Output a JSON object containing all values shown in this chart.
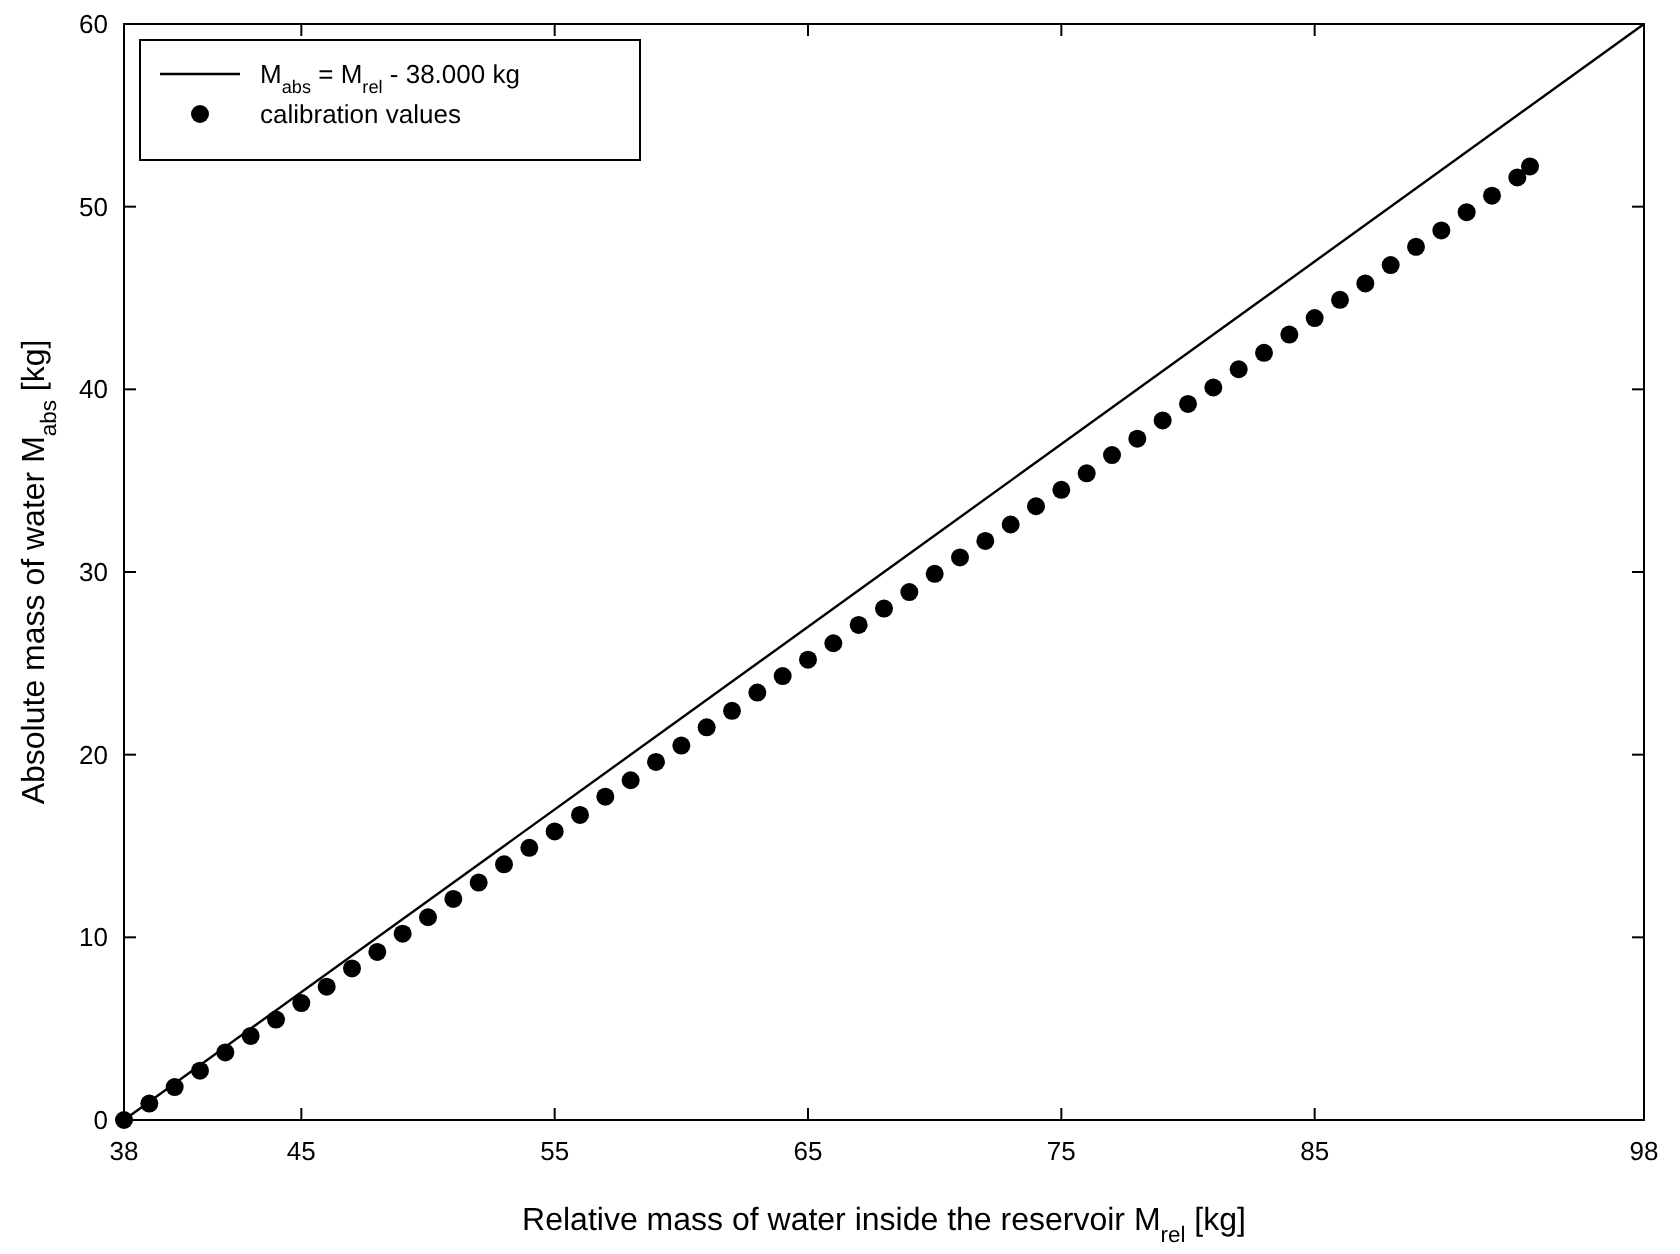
{
  "chart_data": {
    "type": "scatter",
    "xlabel": "Relative mass of water inside the reservoir M$_{rel}$ [kg]",
    "ylabel": "Absolute mass of water M$_{abs}$ [kg]",
    "xlim": [
      38,
      98
    ],
    "xticks": [
      38,
      45,
      55,
      65,
      75,
      85,
      98
    ],
    "ylim": [
      0,
      60
    ],
    "yticks": [
      0,
      10,
      20,
      30,
      40,
      50,
      60
    ],
    "grid": false,
    "legend": "top left",
    "series": [
      {
        "type": "line",
        "name": "M$_{abs}$ = M$_{rel}$ - 38.000 kg",
        "color": "#000000",
        "marker": "none",
        "line_style": "solid",
        "x": [
          38,
          98
        ],
        "values": [
          0,
          60
        ]
      },
      {
        "name": "calibration values",
        "color": "#000000",
        "marker": "circle",
        "x": [
          38,
          39,
          40,
          41,
          42,
          43,
          44,
          45,
          46,
          47,
          48,
          49,
          50,
          51,
          52,
          53,
          54,
          55,
          56,
          57,
          58,
          59,
          60,
          61,
          62,
          63,
          64,
          65,
          66,
          67,
          68,
          69,
          70,
          71,
          72,
          73,
          74,
          75,
          76,
          77,
          78,
          79,
          80,
          81,
          82,
          83,
          84,
          85,
          86,
          87,
          88,
          89,
          90,
          91,
          92,
          93,
          93.5
        ],
        "values": [
          0,
          0.9,
          1.8,
          2.7,
          3.7,
          4.6,
          5.5,
          6.4,
          7.3,
          8.3,
          9.2,
          10.2,
          11.1,
          12.1,
          13.0,
          14.0,
          14.9,
          15.8,
          16.7,
          17.7,
          18.6,
          19.6,
          20.5,
          21.5,
          22.4,
          23.4,
          24.3,
          25.2,
          26.1,
          27.1,
          28.0,
          28.9,
          29.9,
          30.8,
          31.7,
          32.6,
          33.6,
          34.5,
          35.4,
          36.4,
          37.3,
          38.3,
          39.2,
          40.1,
          41.1,
          42.0,
          43.0,
          43.9,
          44.9,
          45.8,
          46.8,
          47.8,
          48.7,
          49.7,
          50.6,
          51.6,
          52.2
        ]
      }
    ]
  }
}
